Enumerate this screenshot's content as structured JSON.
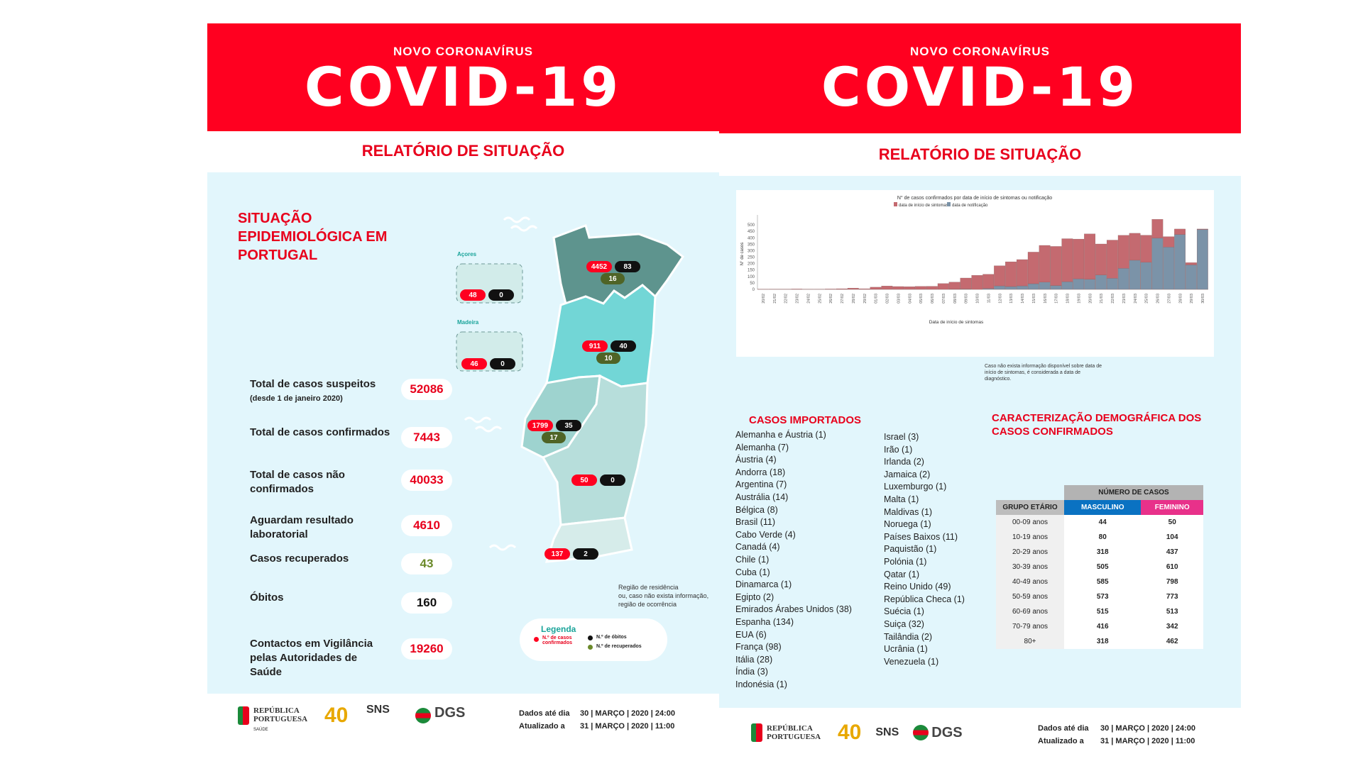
{
  "left": {
    "kicker": "NOVO CORONAVÍRUS",
    "title": "COVID-19",
    "report_title": "RELATÓRIO DE SITUAÇÃO",
    "section_title": "SITUAÇÃO EPIDEMIOLÓGICA EM PORTUGAL",
    "stats": [
      {
        "label": "Total de casos suspeitos",
        "note": "(desde 1 de janeiro 2020)",
        "value": "52086",
        "color": "#e8001c"
      },
      {
        "label": "Total de casos confirmados",
        "value": "7443",
        "color": "#e8001c"
      },
      {
        "label": "Total de casos não confirmados",
        "value": "40033",
        "color": "#e8001c"
      },
      {
        "label": "Aguardam resultado laboratorial",
        "value": "4610",
        "color": "#e8001c"
      },
      {
        "label": "Casos recuperados",
        "value": "43",
        "color": "#6b8a2a"
      },
      {
        "label": "Óbitos",
        "value": "160",
        "color": "#111111"
      },
      {
        "label": "Contactos em Vigilância pelas Autoridades de Saúde",
        "value": "19260",
        "color": "#e8001c"
      }
    ],
    "map": {
      "azores_label": "Açores",
      "madeira_label": "Madeira",
      "regions": [
        {
          "name": "Norte",
          "cases": "4452",
          "deaths": "83",
          "recovered": "16"
        },
        {
          "name": "Centro",
          "cases": "911",
          "deaths": "40",
          "recovered": "10"
        },
        {
          "name": "Lisboa e Vale do Tejo",
          "cases": "1799",
          "deaths": "35",
          "recovered": "17"
        },
        {
          "name": "Alentejo",
          "cases": "50",
          "deaths": "0"
        },
        {
          "name": "Algarve",
          "cases": "137",
          "deaths": "2"
        },
        {
          "name": "Açores",
          "cases": "48",
          "deaths": "0"
        },
        {
          "name": "Madeira",
          "cases": "46",
          "deaths": "0"
        }
      ],
      "note": [
        "Região de residência",
        "ou, caso não exista informação,",
        "região de ocorrência"
      ],
      "legend": {
        "title": "Legenda",
        "cases": "N.º de casos confirmados",
        "deaths": "N.º de óbitos",
        "recovered": "N.º de recuperados"
      }
    },
    "footer": {
      "logos": [
        "REPÚBLICA PORTUGUESA",
        "SAÚDE",
        "40",
        "SNS",
        "DGS"
      ],
      "data_label": "Dados até dia",
      "data_value": "30 | MARÇO | 2020 | 24:00",
      "updated_label": "Atualizado a",
      "updated_value": "31 | MARÇO | 2020 | 11:00"
    }
  },
  "right": {
    "kicker": "NOVO CORONAVÍRUS",
    "title": "COVID-19",
    "report_title": "RELATÓRIO DE SITUAÇÃO",
    "chart_note": "Caso não exista informação disponível sobre data de início de sintomas, é considerada a data de diagnóstico.",
    "imported_title": "CASOS IMPORTADOS",
    "imported_col1": [
      "Alemanha e Áustria (1)",
      "Alemanha (7)",
      "Áustria (4)",
      "Andorra (18)",
      "Argentina (7)",
      "Austrália (14)",
      "Bélgica (8)",
      "Brasil (11)",
      "Cabo Verde (4)",
      "Canadá (4)",
      "Chile (1)",
      "Cuba (1)",
      "Dinamarca (1)",
      "Egipto (2)",
      "Emirados Árabes Unidos (38)",
      "Espanha (134)",
      "EUA (6)",
      "França (98)",
      "Itália (28)",
      "Índia (3)",
      "Indonésia (1)"
    ],
    "imported_col2": [
      "Israel (3)",
      "Irão (1)",
      "Irlanda (2)",
      "Jamaica (2)",
      "Luxemburgo (1)",
      "Malta (1)",
      "Maldivas (1)",
      "Noruega (1)",
      "Países Baixos (11)",
      "Paquistão (1)",
      "Polónia (1)",
      "Qatar (1)",
      "Reino Unido (49)",
      "República Checa (1)",
      "Suécia (1)",
      "Suiça (32)",
      "Tailândia (2)",
      "Ucrânia (1)",
      "Venezuela (1)"
    ],
    "demo_title": "CARACTERIZAÇÃO DEMOGRÁFICA DOS CASOS CONFIRMADOS",
    "demo_table": {
      "group_header": "NÚMERO DE CASOS",
      "col_age": "GRUPO ETÁRIO",
      "col_male": "MASCULINO",
      "col_female": "FEMININO",
      "male_color": "#0a72c2",
      "female_color": "#e8318a",
      "rows": [
        [
          "00-09 anos",
          "44",
          "50"
        ],
        [
          "10-19 anos",
          "80",
          "104"
        ],
        [
          "20-29 anos",
          "318",
          "437"
        ],
        [
          "30-39 anos",
          "505",
          "610"
        ],
        [
          "40-49 anos",
          "585",
          "798"
        ],
        [
          "50-59 anos",
          "573",
          "773"
        ],
        [
          "60-69 anos",
          "515",
          "513"
        ],
        [
          "70-79 anos",
          "416",
          "342"
        ],
        [
          "80+",
          "318",
          "462"
        ]
      ]
    },
    "footer": {
      "data_label": "Dados até dia",
      "data_value": "30 | MARÇO | 2020 | 24:00",
      "updated_label": "Atualizado a",
      "updated_value": "31 | MARÇO | 2020 | 11:00"
    }
  },
  "chart_data": {
    "type": "bar",
    "stacked": true,
    "title": "N° de casos confirmados por data de início de sintomas ou notificação",
    "xlabel": "Data de início de sintomas",
    "ylabel": "N° de casos",
    "ylim": [
      0,
      550
    ],
    "yticks": [
      0,
      50,
      100,
      150,
      200,
      250,
      300,
      350,
      400,
      450,
      500
    ],
    "legend": "top-center",
    "categories": [
      "20/02",
      "21/02",
      "22/02",
      "23/02",
      "24/02",
      "25/02",
      "26/02",
      "27/02",
      "28/02",
      "29/02",
      "01/03",
      "02/03",
      "03/03",
      "04/03",
      "05/03",
      "06/03",
      "07/03",
      "08/03",
      "09/03",
      "10/03",
      "11/03",
      "12/03",
      "13/03",
      "14/03",
      "15/03",
      "16/03",
      "17/03",
      "18/03",
      "19/03",
      "20/03",
      "21/03",
      "22/03",
      "23/03",
      "24/03",
      "25/03",
      "26/03",
      "27/03",
      "28/03",
      "29/03",
      "30/03"
    ],
    "series": [
      {
        "name": "data de notificação",
        "color": "#7b93a8",
        "values": [
          0,
          0,
          0,
          0,
          0,
          0,
          0,
          0,
          0,
          0,
          0,
          0,
          0,
          0,
          0,
          0,
          0,
          2,
          3,
          0,
          7,
          27,
          22,
          27,
          44,
          56,
          30,
          60,
          82,
          79,
          112,
          86,
          163,
          226,
          210,
          398,
          328,
          426,
          190,
          465
        ]
      },
      {
        "name": "data de início de sintomas",
        "color": "#c46a70",
        "values": [
          1,
          2,
          2,
          3,
          1,
          1,
          3,
          5,
          10,
          5,
          17,
          26,
          22,
          21,
          23,
          24,
          45,
          54,
          85,
          109,
          110,
          156,
          192,
          204,
          245,
          285,
          303,
          333,
          308,
          351,
          240,
          296,
          256,
          209,
          210,
          145,
          81,
          42,
          17,
          3
        ]
      }
    ]
  }
}
